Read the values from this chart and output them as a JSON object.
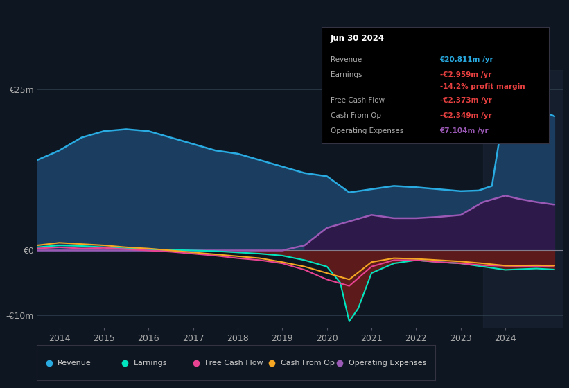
{
  "bg_color": "#0e1621",
  "plot_bg_color": "#0e1621",
  "ylim": [
    -12,
    28
  ],
  "xlim_start": 2013.5,
  "xlim_end": 2025.3,
  "revenue_color": "#29abe2",
  "earnings_color": "#00e5c0",
  "fcf_color": "#e84393",
  "cashfromop_color": "#f5a623",
  "opex_color": "#9b59b6",
  "revenue_fill_color": "#1b3d5f",
  "negative_fill_color": "#5c1a1a",
  "opex_fill_color": "#2d1a4a",
  "info_box": {
    "date": "Jun 30 2024",
    "revenue_val": "€20.811m /yr",
    "earnings_val": "-€2.959m /yr",
    "profit_margin": "-14.2% profit margin",
    "fcf_val": "-€2.373m /yr",
    "cashfromop_val": "-€2.349m /yr",
    "opex_val": "€7.104m /yr"
  },
  "revenue_x": [
    2013.5,
    2014.0,
    2014.5,
    2015.0,
    2015.5,
    2016.0,
    2016.5,
    2017.0,
    2017.5,
    2018.0,
    2018.5,
    2019.0,
    2019.5,
    2020.0,
    2020.5,
    2021.0,
    2021.5,
    2022.0,
    2022.5,
    2023.0,
    2023.4,
    2023.7,
    2024.0,
    2024.3,
    2024.7,
    2025.1
  ],
  "revenue_y": [
    14.0,
    15.5,
    17.5,
    18.5,
    18.8,
    18.5,
    17.5,
    16.5,
    15.5,
    15.0,
    14.0,
    13.0,
    12.0,
    11.5,
    9.0,
    9.5,
    10.0,
    9.8,
    9.5,
    9.2,
    9.3,
    10.0,
    23.0,
    25.0,
    22.0,
    20.8
  ],
  "earnings_x": [
    2013.5,
    2014.0,
    2014.5,
    2015.0,
    2015.5,
    2016.0,
    2016.5,
    2017.0,
    2017.5,
    2018.0,
    2018.5,
    2019.0,
    2019.5,
    2020.0,
    2020.3,
    2020.5,
    2020.7,
    2021.0,
    2021.5,
    2022.0,
    2022.5,
    2023.0,
    2023.5,
    2024.0,
    2024.7,
    2025.1
  ],
  "earnings_y": [
    0.5,
    0.8,
    0.7,
    0.5,
    0.3,
    0.2,
    0.1,
    0.0,
    -0.1,
    -0.3,
    -0.5,
    -0.8,
    -1.5,
    -2.5,
    -5.0,
    -11.0,
    -9.0,
    -3.5,
    -2.0,
    -1.5,
    -1.8,
    -2.0,
    -2.5,
    -3.0,
    -2.8,
    -2.959
  ],
  "fcf_x": [
    2013.5,
    2014.0,
    2014.5,
    2015.0,
    2015.5,
    2016.0,
    2016.5,
    2017.0,
    2017.5,
    2018.0,
    2018.5,
    2019.0,
    2019.5,
    2020.0,
    2020.5,
    2021.0,
    2021.5,
    2022.0,
    2022.5,
    2023.0,
    2023.5,
    2024.0,
    2024.7,
    2025.1
  ],
  "fcf_y": [
    0.3,
    0.5,
    0.3,
    0.4,
    0.2,
    0.0,
    -0.2,
    -0.5,
    -0.8,
    -1.2,
    -1.5,
    -2.0,
    -3.0,
    -4.5,
    -5.5,
    -2.5,
    -1.5,
    -1.5,
    -1.8,
    -2.0,
    -2.3,
    -2.373,
    -2.5,
    -2.373
  ],
  "cashfromop_x": [
    2013.5,
    2014.0,
    2014.5,
    2015.0,
    2015.5,
    2016.0,
    2016.5,
    2017.0,
    2017.5,
    2018.0,
    2018.5,
    2019.0,
    2019.5,
    2020.0,
    2020.5,
    2021.0,
    2021.5,
    2022.0,
    2022.5,
    2023.0,
    2023.5,
    2024.0,
    2024.7,
    2025.1
  ],
  "cashfromop_y": [
    0.8,
    1.2,
    1.0,
    0.8,
    0.5,
    0.3,
    0.0,
    -0.3,
    -0.6,
    -0.9,
    -1.2,
    -1.8,
    -2.5,
    -3.5,
    -4.5,
    -1.8,
    -1.2,
    -1.3,
    -1.5,
    -1.7,
    -2.0,
    -2.349,
    -2.3,
    -2.349
  ],
  "opex_x": [
    2013.5,
    2014.0,
    2015.0,
    2016.0,
    2017.0,
    2018.0,
    2019.0,
    2019.5,
    2020.0,
    2020.5,
    2021.0,
    2021.5,
    2022.0,
    2022.5,
    2023.0,
    2023.5,
    2024.0,
    2024.3,
    2024.7,
    2025.1
  ],
  "opex_y": [
    0.0,
    0.0,
    0.0,
    0.0,
    0.0,
    0.0,
    0.0,
    0.8,
    3.5,
    4.5,
    5.5,
    5.0,
    5.0,
    5.2,
    5.5,
    7.5,
    8.5,
    8.0,
    7.5,
    7.104
  ]
}
